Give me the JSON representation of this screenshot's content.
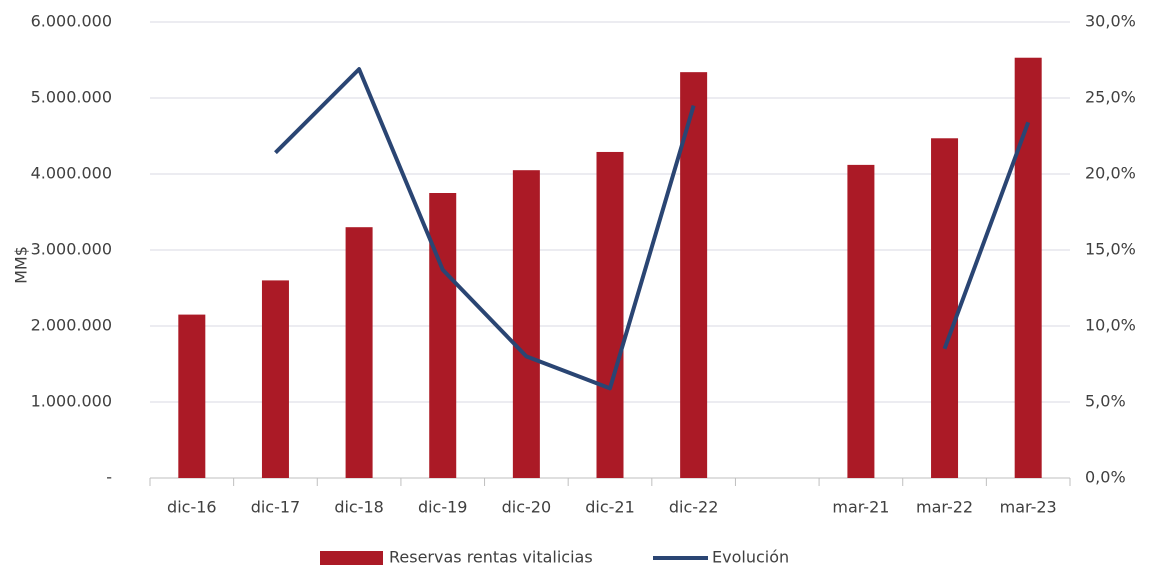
{
  "chart_data": {
    "type": "bar",
    "y_label": "MM$",
    "categories": [
      "dic-16",
      "dic-17",
      "dic-18",
      "dic-19",
      "dic-20",
      "dic-21",
      "dic-22",
      null,
      "mar-21",
      "mar-22",
      "mar-23"
    ],
    "series": [
      {
        "name": "Reservas rentas vitalicias",
        "type": "bar",
        "color": "#ab1a26",
        "values": [
          2150000,
          2600000,
          3300000,
          3750000,
          4050000,
          4290000,
          5340000,
          null,
          4120000,
          4470000,
          5530000
        ]
      },
      {
        "name": "Evolución",
        "type": "line",
        "color": "#2a4573",
        "axis": "y2",
        "values": [
          null,
          21.4,
          26.9,
          13.7,
          8.0,
          5.9,
          24.5,
          null,
          null,
          8.5,
          23.4
        ]
      }
    ],
    "ylim": [
      0,
      6000000
    ],
    "yticks": [
      {
        "value": 0,
        "label": "-"
      },
      {
        "value": 1000000,
        "label": "1.000.000"
      },
      {
        "value": 2000000,
        "label": "2.000.000"
      },
      {
        "value": 3000000,
        "label": "3.000.000"
      },
      {
        "value": 4000000,
        "label": "4.000.000"
      },
      {
        "value": 5000000,
        "label": "5.000.000"
      },
      {
        "value": 6000000,
        "label": "6.000.000"
      }
    ],
    "y2lim": [
      0,
      30
    ],
    "y2ticks": [
      {
        "value": 0,
        "label": "0,0%"
      },
      {
        "value": 5,
        "label": "5,0%"
      },
      {
        "value": 10,
        "label": "10,0%"
      },
      {
        "value": 15,
        "label": "15,0%"
      },
      {
        "value": 20,
        "label": "20,0%"
      },
      {
        "value": 25,
        "label": "25,0%"
      },
      {
        "value": 30,
        "label": "30,0%"
      }
    ],
    "grid": true,
    "legend": "bottom"
  }
}
